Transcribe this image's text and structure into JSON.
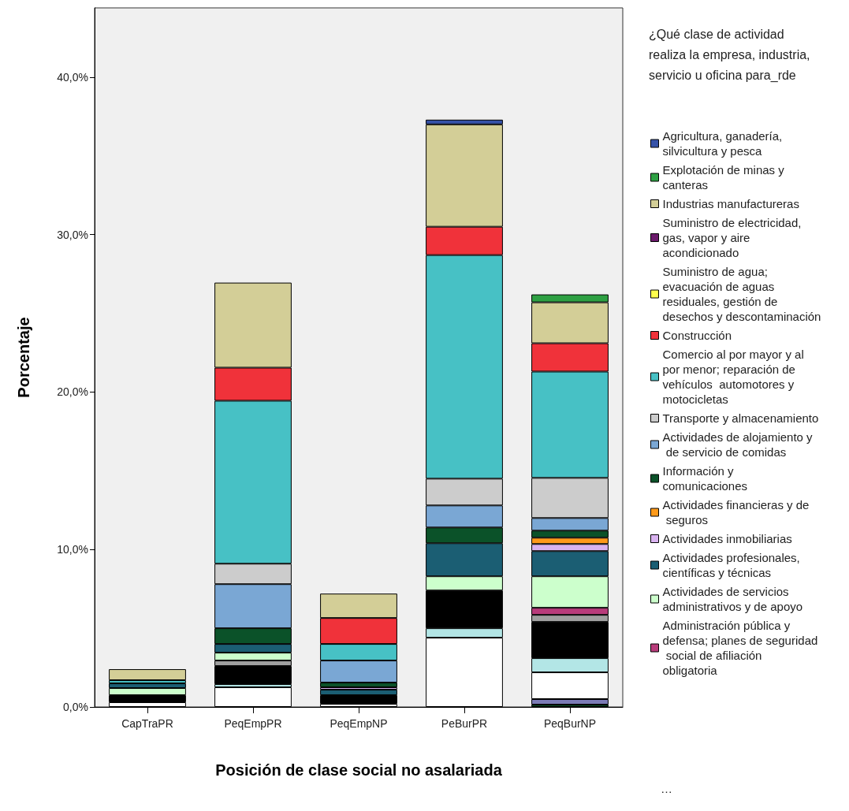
{
  "chart_data": {
    "type": "bar",
    "stacked": true,
    "xlabel": "Posición de clase social no asalariada",
    "ylabel": "Porcentaje",
    "legend_title": "¿Qué clase de actividad realiza la empresa, industria, servicio u oficina para_rde",
    "legend": "right",
    "grid": false,
    "categories": [
      "CapTraPR",
      "PeqEmpPR",
      "PeqEmpNP",
      "PeBurPR",
      "PeqBurNP"
    ],
    "ylim": [
      0,
      44.4
    ],
    "yticks": [
      {
        "value": 0,
        "label": "0,0%"
      },
      {
        "value": 10,
        "label": "10,0%"
      },
      {
        "value": 20,
        "label": "20,0%"
      },
      {
        "value": 30,
        "label": "30,0%"
      },
      {
        "value": 40,
        "label": "40,0%"
      }
    ],
    "series": [
      {
        "color": "#0b5229",
        "values": [
          null,
          null,
          null,
          null,
          0.15
        ]
      },
      {
        "color": "#7b7bb5",
        "values": [
          null,
          null,
          null,
          null,
          0.35
        ]
      },
      {
        "color": "#ffffff",
        "values": [
          0.3,
          1.25,
          0.2,
          4.4,
          1.7
        ]
      },
      {
        "color": "#b3e6e6",
        "values": [
          null,
          0.2,
          null,
          0.6,
          0.9
        ]
      },
      {
        "color": "#000000",
        "values": [
          0.45,
          1.15,
          0.55,
          2.4,
          2.3
        ]
      },
      {
        "color": "#a0a0a0",
        "values": [
          null,
          0.35,
          null,
          null,
          0.45
        ]
      },
      {
        "name": "Administración pública y defensa; planes de seguridad social de afiliación obligatoria",
        "color": "#b83c7b",
        "values": [
          null,
          null,
          null,
          null,
          0.45
        ]
      },
      {
        "name": "Actividades de servicios administrativos y de apoyo",
        "color": "#ccffcc",
        "values": [
          0.45,
          0.5,
          null,
          0.9,
          2.0
        ]
      },
      {
        "name": "Actividades profesionales, científicas y técnicas",
        "color": "#1b5e73",
        "values": [
          0.3,
          0.55,
          0.35,
          2.1,
          1.6
        ]
      },
      {
        "name": "Actividades inmobiliarias",
        "color": "#d9b3f0",
        "values": [
          null,
          null,
          0.15,
          null,
          0.45
        ]
      },
      {
        "name": "Actividades financieras y de seguros",
        "color": "#ff9a1a",
        "values": [
          null,
          null,
          null,
          null,
          0.4
        ]
      },
      {
        "name": "Información y comunicaciones",
        "color": "#0b5229",
        "values": [
          null,
          1.0,
          0.3,
          1.0,
          0.45
        ]
      },
      {
        "name": "Actividades de alojamiento y de servicio de comidas",
        "color": "#7aa7d4",
        "values": [
          null,
          2.8,
          1.4,
          1.4,
          0.8
        ]
      },
      {
        "name": "Transporte y almacenamiento",
        "color": "#cccccc",
        "values": [
          null,
          1.3,
          null,
          1.7,
          2.55
        ]
      },
      {
        "name": "Comercio al por mayor y al por menor; reparación de vehículos  automotores y motocicletas",
        "color": "#47c1c5",
        "values": [
          0.2,
          10.35,
          1.05,
          14.2,
          6.75
        ]
      },
      {
        "name": "Construcción",
        "color": "#f0323a",
        "values": [
          null,
          2.1,
          1.65,
          1.8,
          1.8
        ]
      },
      {
        "name": "Suministro de agua; evacuación de aguas residuales, gestión de desechos y descontaminación",
        "color": "#ffff4d",
        "values": [
          null,
          null,
          null,
          null,
          null
        ]
      },
      {
        "name": "Suministro de electricidad, gas, vapor y aire acondicionado",
        "color": "#6b1a6b",
        "values": [
          null,
          null,
          null,
          null,
          null
        ]
      },
      {
        "name": "Industrias manufactureras",
        "color": "#d3ce97",
        "values": [
          0.7,
          5.4,
          1.55,
          6.5,
          2.6
        ]
      },
      {
        "name": "Explotación de minas y canteras",
        "color": "#2ea043",
        "values": [
          null,
          null,
          null,
          null,
          0.5
        ]
      },
      {
        "name": "Agricultura, ganadería, silvicultura y pesca",
        "color": "#3652a8",
        "values": [
          null,
          null,
          null,
          0.3,
          null
        ]
      }
    ],
    "annotations": [
      "…"
    ]
  }
}
